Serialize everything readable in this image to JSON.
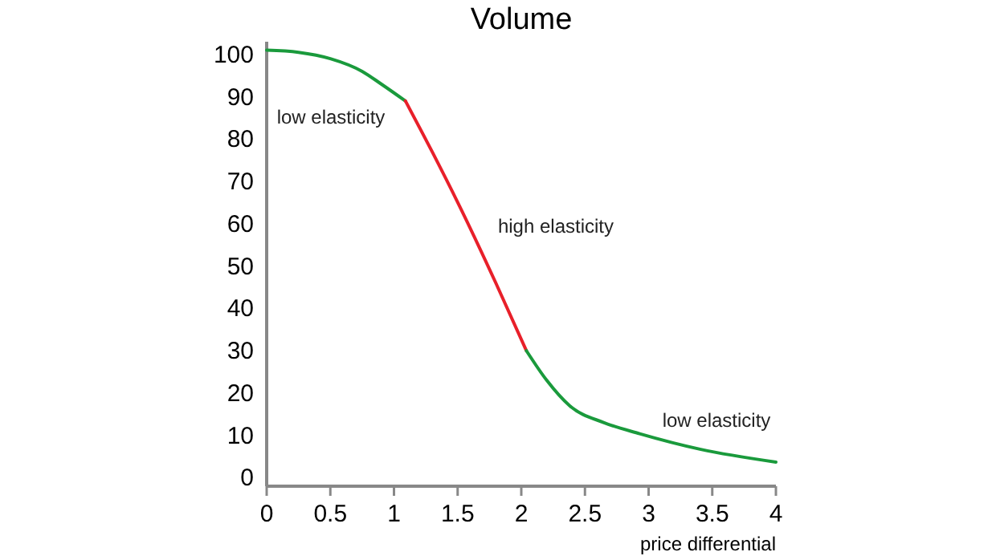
{
  "chart_data": {
    "type": "line",
    "title": "Volume",
    "xlabel": "price differential",
    "xlim": [
      0,
      4
    ],
    "xticks": [
      0,
      0.5,
      1,
      1.5,
      2,
      2.5,
      3,
      3.5,
      4
    ],
    "ylim": [
      -2,
      103
    ],
    "yticks": [
      0,
      10,
      20,
      30,
      40,
      50,
      60,
      70,
      80,
      90,
      100
    ],
    "grid": false,
    "marker": "none",
    "line_style": "solid",
    "series": [
      {
        "color": "#1a9a3c",
        "x": [
          0,
          0.25,
          0.5,
          0.75,
          0.9,
          1.09
        ],
        "values": [
          101,
          100.5,
          99,
          96,
          93,
          89
        ]
      },
      {
        "color": "#e8202a",
        "x": [
          1.09,
          1.3,
          1.55,
          1.8,
          2.04
        ],
        "values": [
          89,
          77,
          62,
          46,
          30
        ]
      },
      {
        "color": "#1a9a3c",
        "x": [
          2.04,
          2.2,
          2.38,
          2.65,
          2.93,
          3.41,
          4
        ],
        "values": [
          30,
          23,
          17,
          13,
          10.4,
          6.7,
          3.7
        ]
      }
    ],
    "annotations": [
      "low elasticity",
      "high elasticity",
      "low elasticity"
    ]
  }
}
